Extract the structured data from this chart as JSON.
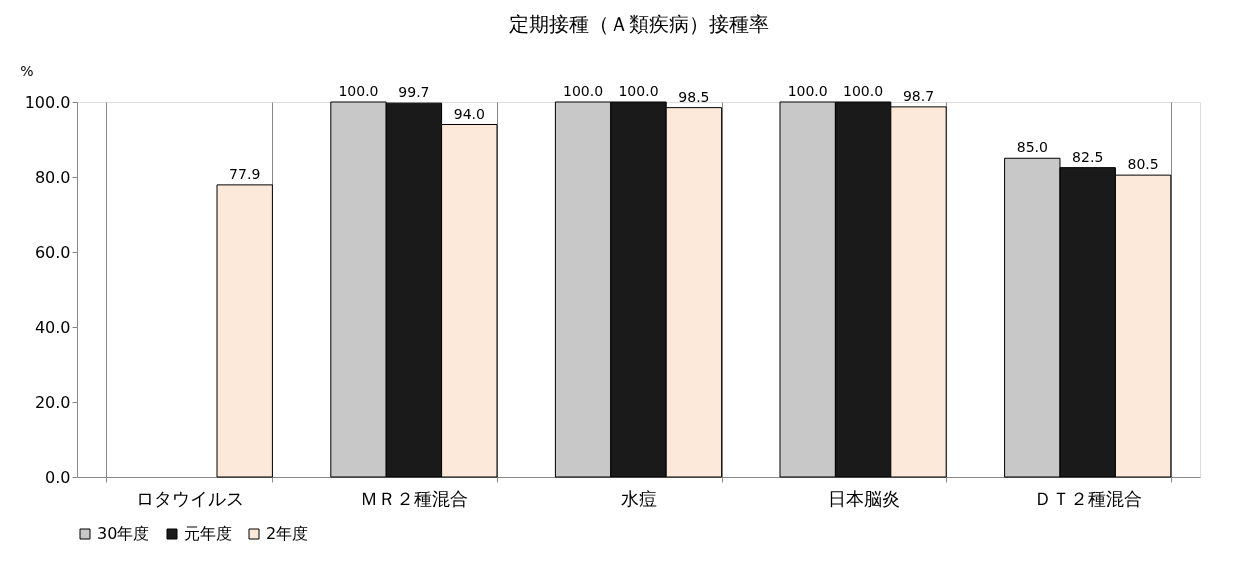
{
  "chart_data": {
    "type": "bar",
    "title": "定期接種（Ａ類疾病）接種率",
    "ylabel": "%",
    "categories": [
      "ロタウイルス",
      "ＭＲ２種混合",
      "水痘",
      "日本脳炎",
      "ＤＴ２種混合"
    ],
    "series": [
      {
        "name": "30年度",
        "color": "#c8c8c8",
        "values": [
          null,
          100.0,
          100.0,
          100.0,
          85.0
        ],
        "value_labels": [
          null,
          "100.0",
          "100.0",
          "100.0",
          "85.0"
        ]
      },
      {
        "name": "元年度",
        "color": "#1a1a1a",
        "values": [
          null,
          99.7,
          100.0,
          100.0,
          82.5
        ],
        "value_labels": [
          null,
          "99.7",
          "100.0",
          "100.0",
          "82.5"
        ]
      },
      {
        "name": "2年度",
        "color": "#fde9d9",
        "values": [
          77.9,
          94.0,
          98.5,
          98.7,
          80.5
        ],
        "value_labels": [
          "77.9",
          "94.0",
          "98.5",
          "98.7",
          "80.5"
        ]
      }
    ],
    "ylim": [
      0,
      100
    ],
    "yticks": [
      {
        "value": 0,
        "label": "0.0"
      },
      {
        "value": 20,
        "label": "20.0"
      },
      {
        "value": 40,
        "label": "40.0"
      },
      {
        "value": 60,
        "label": "60.0"
      },
      {
        "value": 80,
        "label": "80.0"
      },
      {
        "value": 100,
        "label": "100.0"
      }
    ],
    "grid": "x",
    "legend": "bottom"
  }
}
